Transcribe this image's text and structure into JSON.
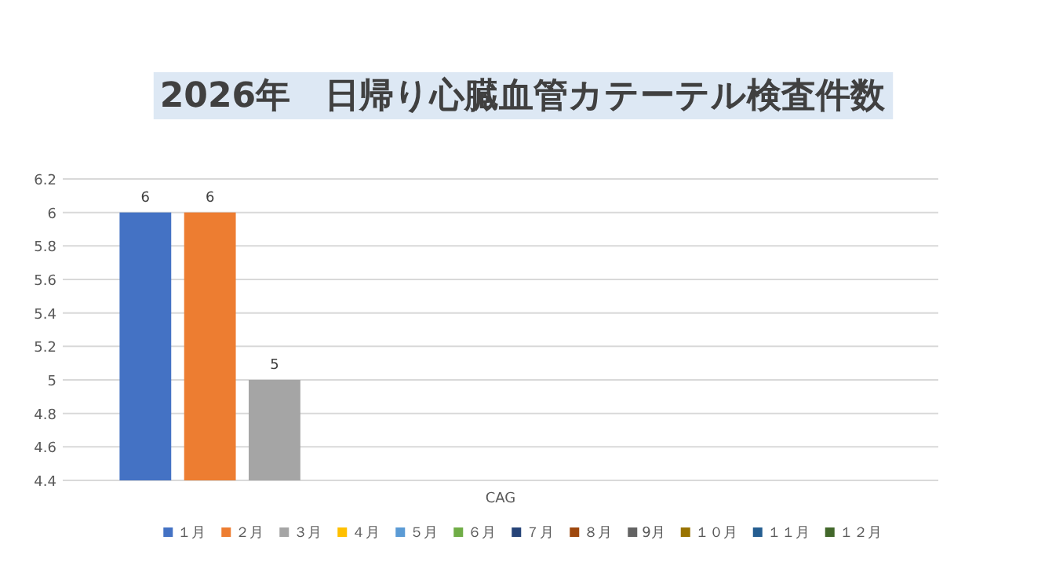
{
  "chart_data": {
    "type": "bar",
    "title": "2026年　日帰り心臓血管カテーテル検査件数",
    "categories": [
      "CAG"
    ],
    "series": [
      {
        "name": "１月",
        "color": "#4472c4",
        "values": [
          6
        ]
      },
      {
        "name": "２月",
        "color": "#ed7d31",
        "values": [
          6
        ]
      },
      {
        "name": "３月",
        "color": "#a5a5a5",
        "values": [
          5
        ]
      },
      {
        "name": "４月",
        "color": "#ffc000",
        "values": [
          null
        ]
      },
      {
        "name": "５月",
        "color": "#5b9bd5",
        "values": [
          null
        ]
      },
      {
        "name": "６月",
        "color": "#70ad47",
        "values": [
          null
        ]
      },
      {
        "name": "７月",
        "color": "#264478",
        "values": [
          null
        ]
      },
      {
        "name": "８月",
        "color": "#9e480e",
        "values": [
          null
        ]
      },
      {
        "name": "9月",
        "color": "#636363",
        "values": [
          null
        ]
      },
      {
        "name": "１０月",
        "color": "#997300",
        "values": [
          null
        ]
      },
      {
        "name": "１１月",
        "color": "#255e91",
        "values": [
          null
        ]
      },
      {
        "name": "１２月",
        "color": "#43682b",
        "values": [
          null
        ]
      }
    ],
    "ylim": [
      4.4,
      6.2
    ],
    "yticks": [
      4.4,
      4.6,
      4.8,
      5,
      5.2,
      5.4,
      5.6,
      5.8,
      6,
      6.2
    ],
    "grid": "y",
    "data_labels": true,
    "legend": "bottom"
  }
}
